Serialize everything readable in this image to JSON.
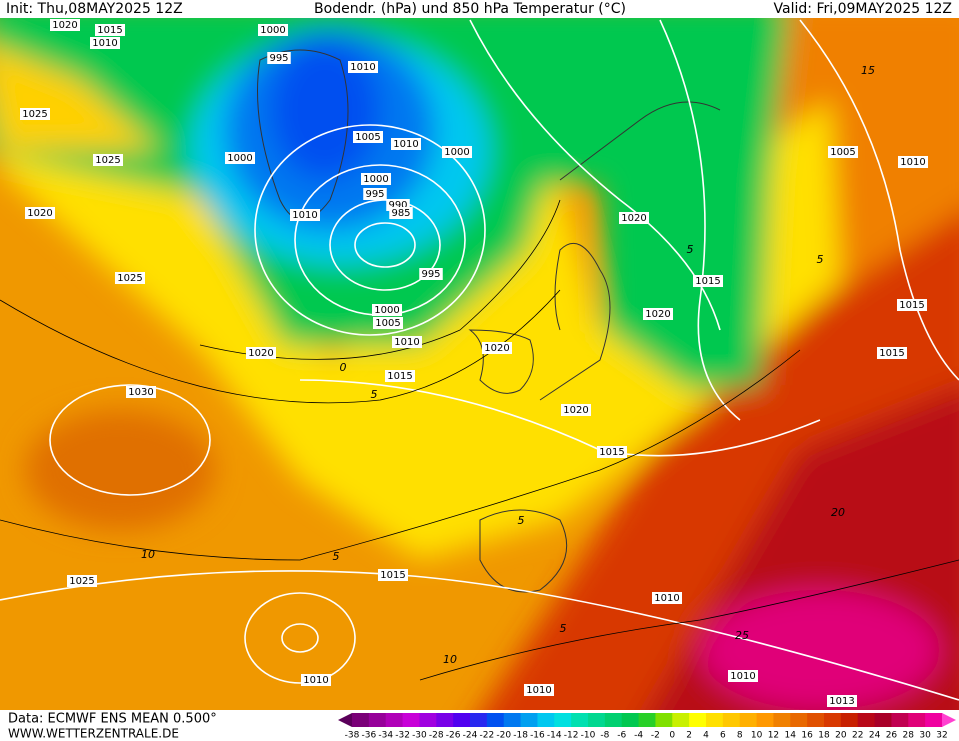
{
  "header": {
    "init": "Init: Thu,08MAY2025 12Z",
    "title": "Bodendr. (hPa) und 850 hPa Temperatur (°C)",
    "valid": "Valid: Fri,09MAY2025 12Z"
  },
  "footer": {
    "data": "Data: ECMWF ENS MEAN 0.500°",
    "site": "WWW.WETTERZENTRALE.DE"
  },
  "isobar_labels": [
    1020,
    1015,
    1010,
    1000,
    995,
    1010,
    1025,
    1005,
    1010,
    1000,
    1025,
    1000,
    1000,
    995,
    990,
    985,
    1010,
    1020,
    1020,
    995,
    1015,
    1025,
    1020,
    1000,
    1005,
    1010,
    1020,
    1020,
    1015,
    1030,
    1020,
    1015,
    1005,
    1010,
    1015,
    1015,
    1025,
    1015,
    1010,
    1010,
    1010,
    1010,
    1013
  ],
  "contour_labels": [
    15,
    0,
    5,
    10,
    5,
    10,
    25,
    20,
    5,
    5,
    5,
    5
  ],
  "colorbar": {
    "labels": [
      -38,
      -36,
      -34,
      -32,
      -30,
      -28,
      -26,
      -24,
      -22,
      -20,
      -18,
      -16,
      -14,
      -12,
      -10,
      -8,
      -6,
      -4,
      -2,
      0,
      2,
      4,
      6,
      8,
      10,
      12,
      14,
      16,
      18,
      20,
      22,
      24,
      26,
      28,
      30,
      32
    ],
    "colors": [
      "#5a005a",
      "#7a0078",
      "#96009a",
      "#b000b8",
      "#c800d8",
      "#a000e0",
      "#7800e8",
      "#5000f0",
      "#2828f0",
      "#0050f0",
      "#0078f0",
      "#00a0f0",
      "#00c8f0",
      "#00e0e0",
      "#00e0b0",
      "#00d890",
      "#00d070",
      "#00c850",
      "#28d028",
      "#80e000",
      "#c8f000",
      "#ffff00",
      "#ffe000",
      "#ffc800",
      "#ffb000",
      "#ff9800",
      "#f08000",
      "#e86800",
      "#e05000",
      "#d83800",
      "#c82000",
      "#b80818",
      "#a80028",
      "#c00050",
      "#e00078",
      "#f000a0",
      "#ff40d0"
    ]
  }
}
